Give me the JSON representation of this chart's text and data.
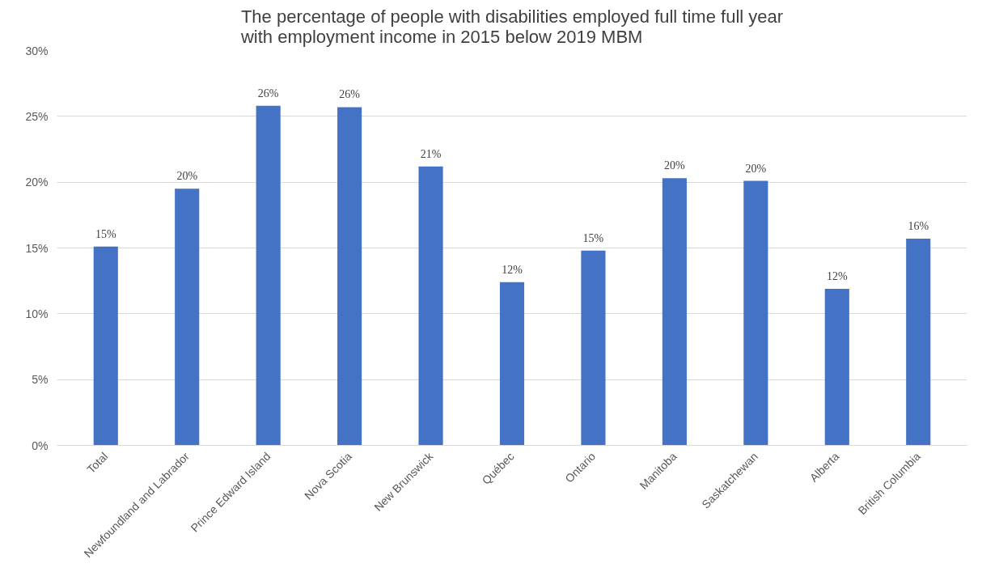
{
  "chart_data": {
    "type": "bar",
    "title": "The percentage of people with disabilities employed full time full year\nwith employment income in 2015 below 2019 MBM",
    "categories": [
      "Total",
      "Newfoundland and Labrador",
      "Prince Edward Island",
      "Nova Scotia",
      "New Brunswick",
      "Québec",
      "Ontario",
      "Manitoba",
      "Saskatchewan",
      "Alberta",
      "British Columbia"
    ],
    "values": [
      15.1,
      19.5,
      25.8,
      25.7,
      21.2,
      12.4,
      14.8,
      20.3,
      20.1,
      11.9,
      15.7
    ],
    "value_labels": [
      "15%",
      "20%",
      "26%",
      "26%",
      "21%",
      "12%",
      "15%",
      "20%",
      "20%",
      "12%",
      "16%"
    ],
    "color": "#4472c4",
    "ylim": [
      0,
      30
    ],
    "yticks": [
      {
        "value": 0,
        "label": "0%"
      },
      {
        "value": 5,
        "label": "5%"
      },
      {
        "value": 10,
        "label": "10%"
      },
      {
        "value": 15,
        "label": "15%"
      },
      {
        "value": 20,
        "label": "20%"
      },
      {
        "value": 25,
        "label": "25%"
      },
      {
        "value": 30,
        "label": "30%"
      }
    ],
    "grid": "y"
  }
}
